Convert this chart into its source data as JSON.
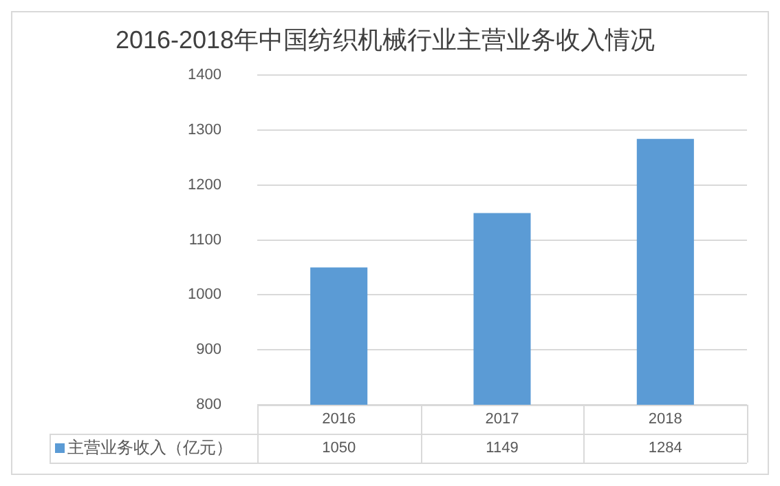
{
  "chart_data": {
    "type": "bar",
    "title": "2016-2018年中国纺织机械行业主营业务收入情况",
    "categories": [
      "2016",
      "2017",
      "2018"
    ],
    "series": [
      {
        "name": "主营业务收入（亿元）",
        "color": "#5b9bd5",
        "values": [
          1050,
          1149,
          1284
        ]
      }
    ],
    "ylim": [
      800,
      1400
    ],
    "yticks": [
      800,
      900,
      1000,
      1100,
      1200,
      1300,
      1400
    ],
    "grid": "y",
    "data_labels": true,
    "legend": "bottom"
  }
}
